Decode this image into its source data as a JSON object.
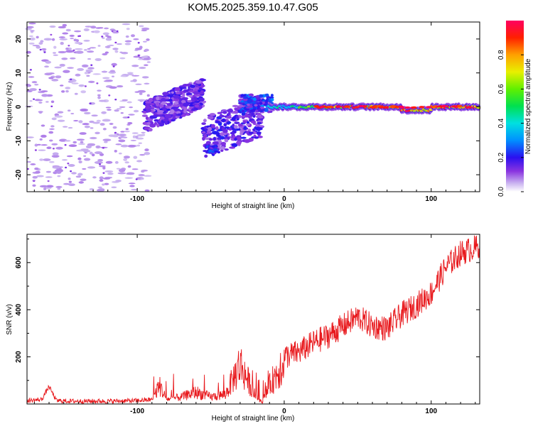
{
  "title": "KOM5.2025.359.10.47.G05",
  "chart_data": [
    {
      "type": "heatmap",
      "xlabel": "Height of straight line (km)",
      "ylabel": "Frequency (Hz)",
      "xlim": [
        -175,
        133
      ],
      "ylim": [
        -25,
        25
      ],
      "xticks": [
        -100,
        0,
        100
      ],
      "yticks": [
        -20,
        -10,
        0,
        10,
        20
      ],
      "colorbar": {
        "label": "Normalized spectral amplitude",
        "range": [
          0,
          1
        ],
        "ticks": [
          0,
          0.2,
          0.4,
          0.6,
          0.8
        ],
        "tick_labels": [
          "0.0",
          "0.2",
          "0.4",
          "0.6",
          "0.8"
        ]
      },
      "features": [
        {
          "name": "scattered weak noise",
          "x": [
            -175,
            -92
          ],
          "y": [
            -25,
            25
          ],
          "amplitude": 0.05
        },
        {
          "name": "strong clusters",
          "x": [
            -95,
            -55
          ],
          "y": [
            -8,
            6
          ],
          "amplitude": 0.15
        },
        {
          "name": "mid clusters",
          "x": [
            -55,
            -15
          ],
          "y": [
            -13,
            4
          ],
          "amplitude": 0.18
        },
        {
          "name": "carrier band",
          "x": [
            -10,
            133
          ],
          "y": [
            -1.5,
            1.5
          ],
          "amplitude": 0.9
        }
      ]
    },
    {
      "type": "line",
      "xlabel": "Height of straight line (km)",
      "ylabel": "SNR (v/v)",
      "xlim": [
        -175,
        133
      ],
      "ylim": [
        0,
        720
      ],
      "xticks": [
        -100,
        0,
        100
      ],
      "yticks": [
        200,
        400,
        600
      ],
      "color": "#e8191d",
      "series_profile": {
        "x": [
          -175,
          -165,
          -160,
          -155,
          -145,
          -120,
          -100,
          -90,
          -85,
          -80,
          -70,
          -60,
          -50,
          -40,
          -30,
          -20,
          -15,
          -10,
          -5,
          0,
          10,
          20,
          30,
          40,
          50,
          60,
          70,
          80,
          90,
          100,
          110,
          120,
          133
        ],
        "y": [
          10,
          15,
          70,
          10,
          8,
          8,
          10,
          15,
          80,
          20,
          30,
          50,
          30,
          40,
          170,
          40,
          5,
          80,
          130,
          200,
          220,
          260,
          290,
          330,
          370,
          330,
          320,
          380,
          420,
          470,
          580,
          640,
          670
        ]
      }
    }
  ]
}
